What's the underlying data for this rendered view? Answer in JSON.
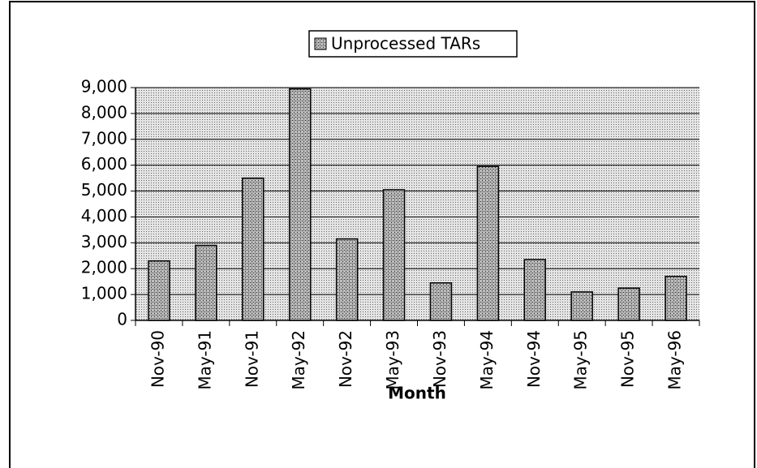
{
  "chart_data": {
    "type": "bar",
    "legend": "top",
    "xlabel": "Month",
    "categories": [
      "Nov-90",
      "May-91",
      "Nov-91",
      "May-92",
      "Nov-92",
      "May-93",
      "Nov-93",
      "May-94",
      "Nov-94",
      "May-95",
      "Nov-95",
      "May-96"
    ],
    "series": [
      {
        "name": "Unprocessed TARs",
        "color": "#7a7a7a",
        "values": [
          2300,
          2900,
          5500,
          8950,
          3150,
          5050,
          1450,
          5950,
          2350,
          1100,
          1250,
          1700
        ]
      }
    ],
    "ylim": [
      0,
      9000
    ],
    "yticks": [
      0,
      {
        "value": 1000,
        "label": "1,000"
      },
      {
        "value": 2000,
        "label": "2,000"
      },
      {
        "value": 3000,
        "label": "3,000"
      },
      {
        "value": 4000,
        "label": "4,000"
      },
      {
        "value": 5000,
        "label": "5,000"
      },
      {
        "value": 6000,
        "label": "6,000"
      },
      {
        "value": 7000,
        "label": "7,000"
      },
      {
        "value": 8000,
        "label": "8,000"
      },
      {
        "value": 9000,
        "label": "9,000"
      }
    ],
    "grid": true
  }
}
